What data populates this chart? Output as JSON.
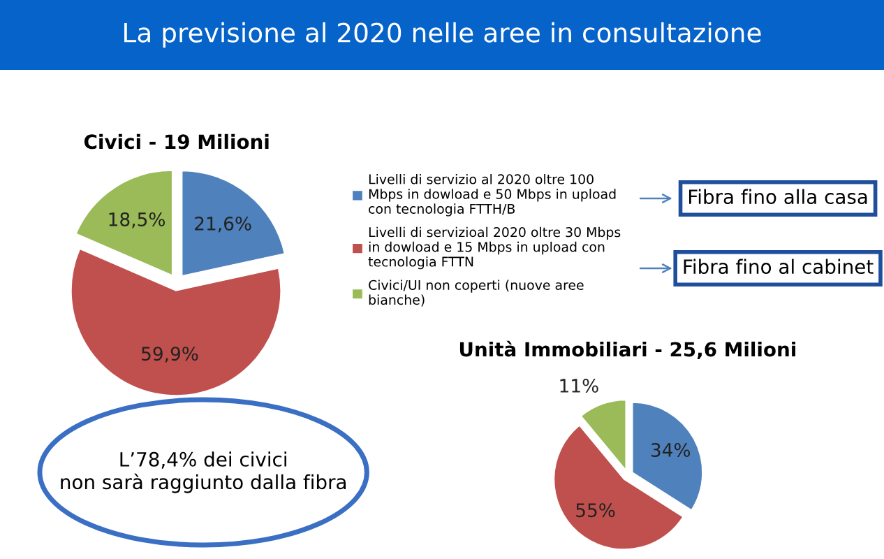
{
  "chart_data": [
    {
      "type": "pie",
      "title": "Civici - 19 Milioni",
      "categories": [
        "Livelli di servizio al 2020 oltre 100\nMbps in dowload e 50 Mbps in upload\ncon tecnologia FTTH/B",
        "Livelli di servizioal 2020 oltre 30 Mbps\nin dowload e 15 Mbps in upload con\ntecnologia FTTN",
        "Civici/UI non coperti (nuove aree\nbianche)"
      ],
      "values": [
        21.6,
        59.9,
        18.5
      ],
      "value_labels": [
        "21,6%",
        "59,9%",
        "18,5%"
      ],
      "colors": [
        "#4f81bd",
        "#c0504d",
        "#9bbb59"
      ],
      "legend": "right",
      "annotations": [
        "La previsione al 2020 nelle aree in consultazione",
        "Fibra fino alla casa",
        "Fibra fino al cabinet",
        "L’78,4% dei civici\nnon sarà raggiunto dalla fibra"
      ]
    },
    {
      "type": "pie",
      "title": "Unità Immobiliari - 25,6 Milioni",
      "categories": [
        null,
        null,
        null
      ],
      "values": [
        34,
        55,
        11
      ],
      "value_labels": [
        "34%",
        "55%",
        "11%"
      ],
      "colors": [
        "#4f81bd",
        "#c0504d",
        "#9bbb59"
      ]
    }
  ]
}
